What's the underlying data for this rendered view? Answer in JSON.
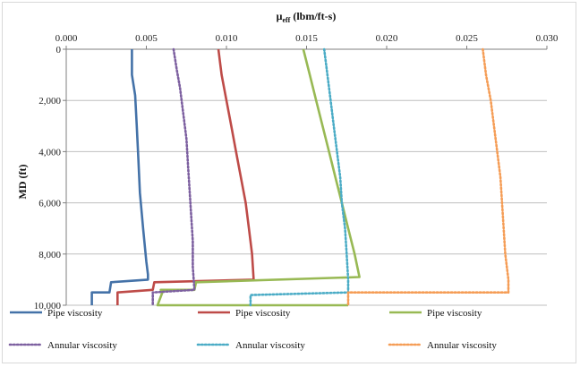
{
  "chart_data": {
    "type": "line",
    "title": "",
    "xlabel_main": "μ",
    "xlabel_sub": "eff",
    "xlabel_rest": " (lbm/ft-s)",
    "ylabel": "MD (ft)",
    "x_axis_position": "top",
    "y_axis_inverted": true,
    "xlim": [
      0,
      0.03
    ],
    "ylim": [
      0,
      10000
    ],
    "x_ticks": [
      0,
      0.005,
      0.01,
      0.015,
      0.02,
      0.025,
      0.03
    ],
    "x_tick_labels": [
      "0.000",
      "0.005",
      "0.010",
      "0.015",
      "0.020",
      "0.025",
      "0.030"
    ],
    "y_ticks": [
      0,
      2000,
      4000,
      6000,
      8000,
      10000
    ],
    "y_tick_labels": [
      "0",
      "2,000",
      "4,000",
      "6,000",
      "8,000",
      "10,000"
    ],
    "grid": {
      "horizontal": true,
      "vertical": false
    },
    "legend_position": "bottom",
    "series": [
      {
        "name": "Pipe viscosity",
        "color": "#4472a8",
        "style": "solid",
        "points": [
          [
            0.0041,
            0
          ],
          [
            0.0041,
            1000
          ],
          [
            0.0043,
            1800
          ],
          [
            0.0044,
            3000
          ],
          [
            0.0045,
            4300
          ],
          [
            0.0046,
            5600
          ],
          [
            0.0048,
            7000
          ],
          [
            0.005,
            8300
          ],
          [
            0.0051,
            8800
          ],
          [
            0.0051,
            9000
          ],
          [
            0.0028,
            9100
          ],
          [
            0.0027,
            9500
          ],
          [
            0.0016,
            9500
          ],
          [
            0.0016,
            10000
          ]
        ]
      },
      {
        "name": "Pipe viscosity",
        "color": "#be4b48",
        "style": "solid",
        "points": [
          [
            0.0095,
            0
          ],
          [
            0.0097,
            1000
          ],
          [
            0.01,
            2000
          ],
          [
            0.0103,
            3000
          ],
          [
            0.0106,
            4000
          ],
          [
            0.0109,
            5000
          ],
          [
            0.0112,
            6000
          ],
          [
            0.0114,
            7000
          ],
          [
            0.0116,
            8000
          ],
          [
            0.0117,
            9000
          ],
          [
            0.0055,
            9100
          ],
          [
            0.0054,
            9400
          ],
          [
            0.0032,
            9500
          ],
          [
            0.0032,
            10000
          ]
        ]
      },
      {
        "name": "Pipe viscosity",
        "color": "#98b954",
        "style": "solid",
        "points": [
          [
            0.0148,
            0
          ],
          [
            0.0152,
            1000
          ],
          [
            0.0156,
            2000
          ],
          [
            0.016,
            3000
          ],
          [
            0.0164,
            4000
          ],
          [
            0.0168,
            5000
          ],
          [
            0.0172,
            6000
          ],
          [
            0.0176,
            7000
          ],
          [
            0.018,
            8000
          ],
          [
            0.0183,
            8900
          ],
          [
            0.0081,
            9100
          ],
          [
            0.008,
            9400
          ],
          [
            0.0059,
            9400
          ],
          [
            0.006,
            9500
          ],
          [
            0.0057,
            10000
          ],
          [
            0.0176,
            10000
          ]
        ]
      },
      {
        "name": "Annular viscosity",
        "color": "#7d60a0",
        "style": "dotted",
        "points": [
          [
            0.0067,
            0
          ],
          [
            0.0069,
            800
          ],
          [
            0.0071,
            1500
          ],
          [
            0.0073,
            2500
          ],
          [
            0.0075,
            3500
          ],
          [
            0.0076,
            4500
          ],
          [
            0.0077,
            5500
          ],
          [
            0.0078,
            6500
          ],
          [
            0.0079,
            7500
          ],
          [
            0.0079,
            8500
          ],
          [
            0.008,
            9400
          ],
          [
            0.0054,
            9500
          ],
          [
            0.0054,
            10000
          ]
        ]
      },
      {
        "name": "Annular viscosity",
        "color": "#4bacc6",
        "style": "dotted",
        "points": [
          [
            0.0161,
            0
          ],
          [
            0.0163,
            1000
          ],
          [
            0.0165,
            2000
          ],
          [
            0.0167,
            3000
          ],
          [
            0.0169,
            4000
          ],
          [
            0.0171,
            5000
          ],
          [
            0.0172,
            6000
          ],
          [
            0.0174,
            7000
          ],
          [
            0.0175,
            8000
          ],
          [
            0.0176,
            9000
          ],
          [
            0.0176,
            9500
          ],
          [
            0.0115,
            9600
          ],
          [
            0.0115,
            10000
          ]
        ]
      },
      {
        "name": "Annular viscosity",
        "color": "#f59d56",
        "style": "dotted",
        "points": [
          [
            0.026,
            0
          ],
          [
            0.0262,
            1000
          ],
          [
            0.0265,
            2000
          ],
          [
            0.0267,
            3000
          ],
          [
            0.0269,
            4000
          ],
          [
            0.0271,
            5000
          ],
          [
            0.0272,
            6000
          ],
          [
            0.0273,
            7000
          ],
          [
            0.0274,
            8000
          ],
          [
            0.0276,
            9000
          ],
          [
            0.0276,
            9500
          ],
          [
            0.0176,
            9500
          ],
          [
            0.0176,
            10000
          ]
        ]
      }
    ]
  }
}
